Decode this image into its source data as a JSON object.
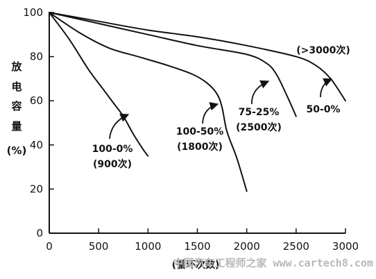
{
  "chart_data": {
    "type": "line",
    "xlabel": "(循环次数)",
    "ylabel": [
      "放",
      "电",
      "容",
      "量",
      "(%)"
    ],
    "xlim": [
      0,
      3000
    ],
    "ylim": [
      0,
      100
    ],
    "xticks": [
      "0",
      "500",
      "1000",
      "1500",
      "2000",
      "2500",
      "3000"
    ],
    "yticks": [
      "0",
      "20",
      "40",
      "60",
      "80",
      "100"
    ],
    "grid": false,
    "series": [
      {
        "name": "100-0% (900次)",
        "label_lines": [
          "100-0%",
          "(900次)"
        ],
        "x": [
          0,
          200,
          400,
          550,
          650,
          750,
          850,
          950,
          1000
        ],
        "y": [
          100,
          88,
          74,
          65,
          59,
          53,
          45,
          38,
          35
        ]
      },
      {
        "name": "100-50% (1800次)",
        "label_lines": [
          "100-50%",
          "(1800次)"
        ],
        "x": [
          0,
          300,
          600,
          900,
          1200,
          1450,
          1600,
          1700,
          1750,
          1800,
          1900,
          2000
        ],
        "y": [
          100,
          91,
          84,
          80,
          76,
          72,
          68,
          63,
          57,
          46,
          34,
          19
        ]
      },
      {
        "name": "75-25% (2500次)",
        "label_lines": [
          "75-25%",
          "(2500次)"
        ],
        "x": [
          0,
          500,
          1000,
          1500,
          2000,
          2200,
          2300,
          2400,
          2500
        ],
        "y": [
          100,
          95,
          90,
          85,
          81,
          77,
          72,
          63,
          53
        ]
      },
      {
        "name": "50-0% (>3000次)",
        "label_lines": [
          "50-0%",
          "(>3000次)"
        ],
        "x": [
          0,
          500,
          1000,
          1500,
          2000,
          2500,
          2700,
          2850,
          3000
        ],
        "y": [
          100,
          96,
          92,
          89,
          85,
          80,
          76,
          70,
          60
        ]
      }
    ]
  },
  "watermark": "中国汽车工程师之家 www.cartech8.com"
}
